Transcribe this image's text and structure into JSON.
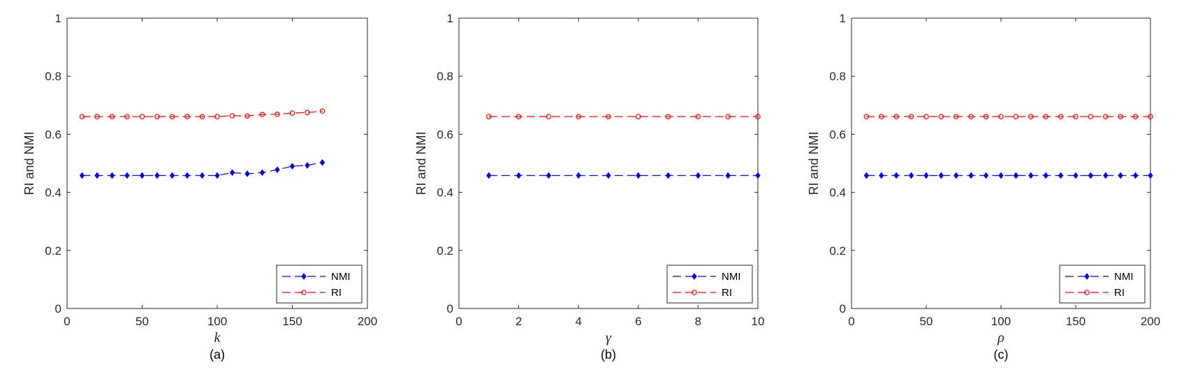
{
  "chart_data": [
    {
      "type": "line",
      "panel_label": "(a)",
      "xlabel": "k",
      "ylabel": "RI and NMI",
      "xlim": [
        0,
        200
      ],
      "ylim": [
        0,
        1
      ],
      "x_ticks": [
        "0",
        "50",
        "100",
        "150",
        "200"
      ],
      "y_ticks": [
        "0",
        "0.2",
        "0.4",
        "0.6",
        "0.8",
        "1"
      ],
      "legend_position": "bottom-right",
      "x": [
        10,
        20,
        30,
        40,
        50,
        60,
        70,
        80,
        90,
        100,
        110,
        120,
        130,
        140,
        150,
        160,
        170
      ],
      "series": [
        {
          "name": "NMI",
          "color": "#0000ff",
          "marker": "diamond",
          "values": [
            0.458,
            0.458,
            0.458,
            0.458,
            0.458,
            0.458,
            0.458,
            0.458,
            0.458,
            0.458,
            0.468,
            0.464,
            0.468,
            0.478,
            0.49,
            0.493,
            0.503
          ]
        },
        {
          "name": "RI",
          "color": "#ff0000",
          "marker": "circle",
          "values": [
            0.661,
            0.661,
            0.661,
            0.661,
            0.661,
            0.661,
            0.661,
            0.661,
            0.661,
            0.661,
            0.664,
            0.663,
            0.668,
            0.669,
            0.673,
            0.675,
            0.68
          ]
        }
      ]
    },
    {
      "type": "line",
      "panel_label": "(b)",
      "xlabel": "γ",
      "ylabel": "RI and NMI",
      "xlim": [
        0,
        10
      ],
      "ylim": [
        0,
        1
      ],
      "x_ticks": [
        "0",
        "2",
        "4",
        "6",
        "8",
        "10"
      ],
      "y_ticks": [
        "0",
        "0.2",
        "0.4",
        "0.6",
        "0.8",
        "1"
      ],
      "legend_position": "bottom-right",
      "x": [
        1,
        2,
        3,
        4,
        5,
        6,
        7,
        8,
        9,
        10
      ],
      "series": [
        {
          "name": "NMI",
          "color": "#0000ff",
          "marker": "diamond",
          "values": [
            0.458,
            0.458,
            0.458,
            0.458,
            0.458,
            0.458,
            0.458,
            0.458,
            0.458,
            0.458
          ]
        },
        {
          "name": "RI",
          "color": "#ff0000",
          "marker": "circle",
          "values": [
            0.661,
            0.661,
            0.661,
            0.661,
            0.661,
            0.661,
            0.661,
            0.661,
            0.661,
            0.661
          ]
        }
      ]
    },
    {
      "type": "line",
      "panel_label": "(c)",
      "xlabel": "ρ",
      "ylabel": "RI and NMI",
      "xlim": [
        0,
        200
      ],
      "ylim": [
        0,
        1
      ],
      "x_ticks": [
        "0",
        "50",
        "100",
        "150",
        "200"
      ],
      "y_ticks": [
        "0",
        "0.2",
        "0.4",
        "0.6",
        "0.8",
        "1"
      ],
      "legend_position": "bottom-right",
      "x": [
        10,
        20,
        30,
        40,
        50,
        60,
        70,
        80,
        90,
        100,
        110,
        120,
        130,
        140,
        150,
        160,
        170,
        180,
        190,
        200
      ],
      "series": [
        {
          "name": "NMI",
          "color": "#0000ff",
          "marker": "diamond",
          "values": [
            0.458,
            0.458,
            0.458,
            0.458,
            0.458,
            0.458,
            0.458,
            0.458,
            0.458,
            0.458,
            0.458,
            0.458,
            0.458,
            0.458,
            0.458,
            0.458,
            0.458,
            0.458,
            0.458,
            0.458
          ]
        },
        {
          "name": "RI",
          "color": "#ff0000",
          "marker": "circle",
          "values": [
            0.661,
            0.661,
            0.661,
            0.661,
            0.661,
            0.661,
            0.661,
            0.661,
            0.661,
            0.661,
            0.661,
            0.661,
            0.661,
            0.661,
            0.661,
            0.661,
            0.661,
            0.661,
            0.661,
            0.661
          ]
        }
      ]
    }
  ]
}
